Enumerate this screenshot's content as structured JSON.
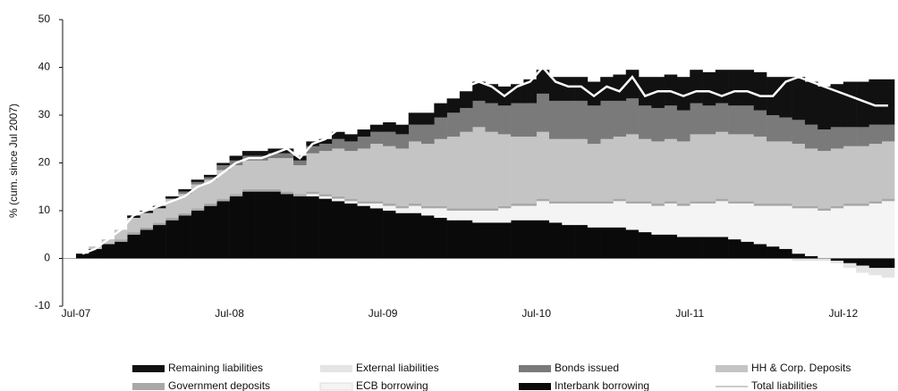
{
  "chart_data": {
    "type": "bar",
    "stacked": true,
    "y_label": "% (cum. since Jul 2007)",
    "categories": [
      "Jul-07",
      null,
      null,
      null,
      null,
      null,
      null,
      null,
      null,
      null,
      null,
      null,
      "Jul-08",
      null,
      null,
      null,
      null,
      null,
      null,
      null,
      null,
      null,
      null,
      null,
      "Jul-09",
      null,
      null,
      null,
      null,
      null,
      null,
      null,
      null,
      null,
      null,
      null,
      "Jul-10",
      null,
      null,
      null,
      null,
      null,
      null,
      null,
      null,
      null,
      null,
      null,
      "Jul-11",
      null,
      null,
      null,
      null,
      null,
      null,
      null,
      null,
      null,
      null,
      null,
      "Jul-12",
      null,
      null,
      null
    ],
    "ylim": [
      -10,
      50
    ],
    "yticks": [
      -10,
      0,
      10,
      20,
      30,
      40,
      50
    ],
    "series": [
      {
        "name": "Remaining liabilities",
        "color": "#111111",
        "values": [
          0,
          0,
          0,
          0,
          0.5,
          0.5,
          0.5,
          0.5,
          0.5,
          0.5,
          0.5,
          0.5,
          1,
          1,
          1,
          1,
          1,
          1,
          1,
          1,
          1.5,
          1.5,
          1.5,
          1.5,
          2,
          2,
          2.5,
          2.5,
          3,
          3,
          3.5,
          4,
          4,
          4,
          4,
          5,
          5,
          5,
          5,
          5,
          5,
          5,
          5.5,
          6,
          6,
          6.5,
          6.5,
          7,
          7,
          7,
          7,
          7.5,
          7.5,
          8,
          8,
          8.5,
          9,
          9,
          9,
          9,
          9.5,
          9.5,
          9.5,
          9.5
        ]
      },
      {
        "name": "External liabilities",
        "color": "#e4e4e4",
        "values": [
          0,
          0,
          0,
          0,
          0,
          0,
          0,
          0,
          0,
          0,
          0,
          0,
          0,
          0,
          0,
          0,
          0,
          0,
          0,
          0,
          0,
          0,
          0,
          0,
          0,
          0,
          0,
          0,
          0,
          0,
          0,
          0,
          0,
          0,
          0,
          0,
          0,
          0,
          0,
          0,
          0,
          0,
          0,
          0,
          0,
          0,
          0,
          0,
          0,
          0,
          0,
          0,
          0,
          0,
          0,
          0,
          -0.5,
          -0.5,
          -0.5,
          -0.5,
          -1,
          -1.5,
          -1.5,
          -2
        ]
      },
      {
        "name": "Bonds issued",
        "color": "#7a7a7a",
        "values": [
          0,
          0,
          0,
          0,
          0,
          0,
          0,
          0,
          0.5,
          0.5,
          0.5,
          1,
          1,
          1,
          1,
          1,
          1,
          1,
          1.5,
          1.5,
          2,
          2,
          2.5,
          2.5,
          3,
          3,
          3.5,
          4,
          4.5,
          5,
          5,
          5.5,
          6,
          6,
          7,
          7,
          8,
          8,
          8,
          8,
          8,
          8,
          7.5,
          7.5,
          7,
          7,
          7,
          6.5,
          6.5,
          6,
          6,
          6,
          6,
          5.5,
          5.5,
          5,
          5,
          5,
          4.5,
          4.5,
          4,
          4,
          4,
          3.5
        ]
      },
      {
        "name": "HH & Corp. Deposits",
        "color": "#c4c4c4",
        "values": [
          0,
          0.5,
          1,
          2,
          3,
          3,
          3,
          4,
          4,
          5,
          5,
          6,
          6,
          6,
          6,
          6.5,
          7,
          6,
          8,
          9,
          10,
          10,
          11,
          12,
          12,
          12,
          13,
          13,
          14,
          15,
          16,
          17,
          16,
          15,
          14,
          14,
          14,
          13,
          13,
          13,
          12,
          13,
          13,
          14,
          13,
          13,
          13,
          13,
          14,
          14,
          14,
          14,
          14,
          14,
          13,
          13,
          13,
          12,
          12,
          12,
          12,
          12,
          12,
          12
        ]
      },
      {
        "name": "Government deposits",
        "color": "#a8a8a8",
        "values": [
          0,
          0,
          0,
          0.5,
          0.5,
          0.5,
          0.5,
          0.5,
          0.5,
          0.5,
          0.5,
          0.5,
          0.5,
          0.5,
          0.5,
          0.5,
          0.5,
          0.5,
          0.5,
          0.5,
          0.5,
          0.5,
          0.5,
          0.5,
          0.5,
          0.5,
          0.5,
          0.5,
          0.5,
          0.5,
          0.5,
          0.5,
          0.5,
          0.5,
          0.5,
          0.5,
          0.5,
          0.5,
          0.5,
          0.5,
          0.5,
          0.5,
          0.5,
          0.5,
          0.5,
          0.5,
          0.5,
          0.5,
          0.5,
          0.5,
          0.5,
          0.5,
          0.5,
          0.5,
          0.5,
          0.5,
          0.5,
          0.5,
          0.5,
          0.5,
          0.5,
          0.5,
          0.5,
          0.5
        ]
      },
      {
        "name": "ECB borrowing",
        "color": "#f4f4f4",
        "values": [
          0,
          0,
          0,
          0,
          0,
          0,
          0,
          0,
          0,
          0,
          0,
          0,
          0,
          0,
          0,
          0,
          0,
          0,
          0.5,
          0.5,
          0.5,
          0.5,
          0.5,
          1,
          1,
          1,
          1.5,
          1.5,
          2,
          2,
          2,
          2.5,
          2.5,
          3,
          3,
          3,
          4,
          4,
          4.5,
          4.5,
          5,
          5,
          5.5,
          5.5,
          6,
          6,
          6.5,
          6.5,
          7,
          7,
          7.5,
          7.5,
          8,
          8,
          8.5,
          9,
          9.5,
          10,
          10,
          10.5,
          11,
          11,
          11.5,
          12
        ]
      },
      {
        "name": "Interbank borrowing",
        "color": "#0a0a0a",
        "values": [
          1,
          2,
          3,
          3.5,
          5,
          6,
          7,
          8,
          9,
          10,
          11,
          12,
          13,
          14,
          14,
          14,
          13.5,
          13,
          13,
          12.5,
          12,
          11.5,
          11,
          10.5,
          10,
          9.5,
          9.5,
          9,
          8.5,
          8,
          8,
          7.5,
          7.5,
          7.5,
          8,
          8,
          8,
          7.5,
          7,
          7,
          6.5,
          6.5,
          6.5,
          6,
          5.5,
          5,
          5,
          4.5,
          4.5,
          4.5,
          4.5,
          4,
          3.5,
          3,
          2.5,
          2,
          1,
          0.5,
          0,
          -0.5,
          -1,
          -1.5,
          -2,
          -2
        ]
      },
      {
        "name": "Total liabilities",
        "type": "line",
        "color": "#ffffff",
        "values": [
          1,
          2,
          4,
          6,
          9,
          10,
          11,
          12,
          13,
          15,
          16,
          18,
          20,
          21,
          21,
          22,
          23,
          21,
          24,
          25,
          27,
          28,
          28,
          30,
          31,
          30,
          32,
          32,
          34,
          35,
          36,
          37,
          36,
          34,
          36,
          37,
          40,
          37,
          36,
          36,
          34,
          36,
          35,
          38,
          34,
          35,
          35,
          34,
          35,
          35,
          34,
          35,
          35,
          34,
          34,
          37,
          38,
          37,
          36,
          35,
          34,
          33,
          32,
          32
        ]
      }
    ]
  }
}
